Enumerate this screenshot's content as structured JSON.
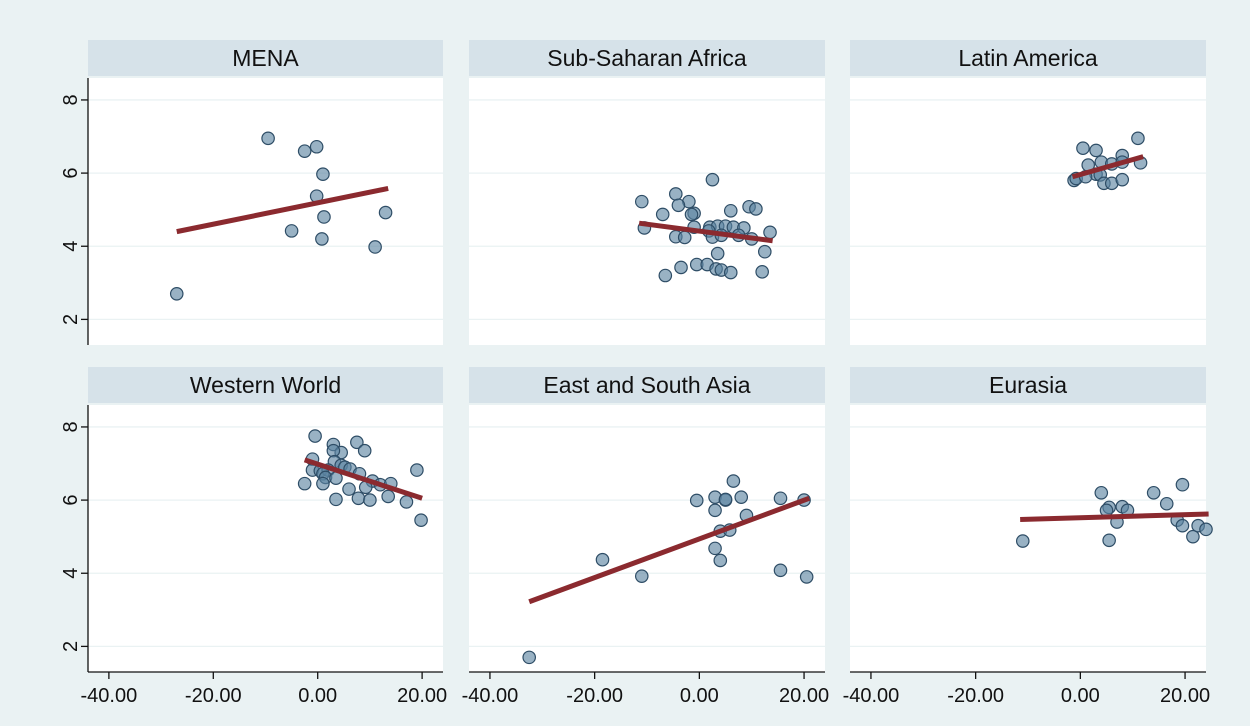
{
  "chart_data": {
    "type": "scatter",
    "layout": "facet-grid-2x3",
    "x_ticks": [
      "-40.00",
      "-20.00",
      "0.00",
      "20.00"
    ],
    "y_ticks": [
      "2",
      "4",
      "6",
      "8"
    ],
    "xlim": [
      -44,
      24
    ],
    "ylim": [
      1.3,
      8.6
    ],
    "grid": true,
    "fit_color": "#8b2a2f",
    "point_color": "#5b82a0",
    "panels": [
      {
        "title": "MENA",
        "points": [
          [
            -27,
            2.7
          ],
          [
            -9.5,
            6.95
          ],
          [
            -2.5,
            6.6
          ],
          [
            -0.2,
            6.72
          ],
          [
            1,
            5.97
          ],
          [
            -0.2,
            5.37
          ],
          [
            -5,
            4.42
          ],
          [
            1.2,
            4.8
          ],
          [
            0.8,
            4.2
          ],
          [
            13,
            4.92
          ],
          [
            11,
            3.98
          ]
        ],
        "fit": [
          [
            -27,
            4.4
          ],
          [
            13.5,
            5.58
          ]
        ]
      },
      {
        "title": "Sub-Saharan Africa",
        "points": [
          [
            -11,
            5.22
          ],
          [
            -4.5,
            5.43
          ],
          [
            -2,
            5.22
          ],
          [
            -4,
            5.12
          ],
          [
            -7,
            4.87
          ],
          [
            -1,
            4.9
          ],
          [
            2.5,
            5.82
          ],
          [
            6,
            4.97
          ],
          [
            9.5,
            5.08
          ],
          [
            10.8,
            5.02
          ],
          [
            -10.5,
            4.5
          ],
          [
            -1.5,
            4.87
          ],
          [
            2,
            4.52
          ],
          [
            3.5,
            4.55
          ],
          [
            5,
            4.55
          ],
          [
            6.5,
            4.52
          ],
          [
            8.5,
            4.5
          ],
          [
            -1,
            4.52
          ],
          [
            -4.5,
            4.26
          ],
          [
            -2.8,
            4.24
          ],
          [
            1.8,
            4.42
          ],
          [
            2.5,
            4.25
          ],
          [
            4.2,
            4.3
          ],
          [
            7.5,
            4.3
          ],
          [
            10,
            4.2
          ],
          [
            13.5,
            4.38
          ],
          [
            12.5,
            3.85
          ],
          [
            3.5,
            3.8
          ],
          [
            -0.5,
            3.5
          ],
          [
            1.5,
            3.5
          ],
          [
            3.2,
            3.38
          ],
          [
            4.2,
            3.35
          ],
          [
            -3.5,
            3.42
          ],
          [
            -6.5,
            3.2
          ],
          [
            6,
            3.28
          ],
          [
            12,
            3.3
          ]
        ],
        "fit": [
          [
            -11.5,
            4.63
          ],
          [
            14,
            4.15
          ]
        ]
      },
      {
        "title": "Latin America",
        "points": [
          [
            11,
            6.95
          ],
          [
            0.5,
            6.68
          ],
          [
            3,
            6.62
          ],
          [
            8,
            6.48
          ],
          [
            1.5,
            6.22
          ],
          [
            4,
            6.3
          ],
          [
            6,
            6.25
          ],
          [
            8,
            6.3
          ],
          [
            11.5,
            6.28
          ],
          [
            3,
            5.97
          ],
          [
            3.8,
            5.95
          ],
          [
            -1.2,
            5.8
          ],
          [
            -0.8,
            5.85
          ],
          [
            1,
            5.9
          ],
          [
            4.5,
            5.72
          ],
          [
            6,
            5.72
          ],
          [
            8,
            5.82
          ]
        ],
        "fit": [
          [
            -1.5,
            5.9
          ],
          [
            12,
            6.45
          ]
        ]
      },
      {
        "title": "Western World",
        "points": [
          [
            -0.5,
            7.75
          ],
          [
            7.5,
            7.58
          ],
          [
            3,
            7.52
          ],
          [
            4.5,
            7.3
          ],
          [
            3,
            7.35
          ],
          [
            9,
            7.35
          ],
          [
            -1,
            7.12
          ],
          [
            3.2,
            7.05
          ],
          [
            4.5,
            6.95
          ],
          [
            -1,
            6.82
          ],
          [
            0.5,
            6.8
          ],
          [
            2,
            6.82
          ],
          [
            5.2,
            6.9
          ],
          [
            6.2,
            6.85
          ],
          [
            1,
            6.72
          ],
          [
            8,
            6.72
          ],
          [
            1.5,
            6.62
          ],
          [
            3.5,
            6.6
          ],
          [
            10.5,
            6.52
          ],
          [
            -2.5,
            6.45
          ],
          [
            1,
            6.45
          ],
          [
            6,
            6.3
          ],
          [
            9.2,
            6.35
          ],
          [
            12,
            6.42
          ],
          [
            14,
            6.45
          ],
          [
            3.5,
            6.02
          ],
          [
            7.8,
            6.05
          ],
          [
            10,
            6
          ],
          [
            13.5,
            6.1
          ],
          [
            17,
            5.95
          ],
          [
            19,
            6.82
          ],
          [
            19.8,
            5.45
          ]
        ],
        "fit": [
          [
            -2.5,
            7.1
          ],
          [
            20,
            6.05
          ]
        ]
      },
      {
        "title": "East and South Asia",
        "points": [
          [
            -32.5,
            1.7
          ],
          [
            -18.5,
            4.37
          ],
          [
            -11,
            3.92
          ],
          [
            -0.5,
            5.99
          ],
          [
            3,
            6.08
          ],
          [
            5,
            6
          ],
          [
            5,
            6.02
          ],
          [
            6.5,
            6.52
          ],
          [
            8,
            6.08
          ],
          [
            15.5,
            6.05
          ],
          [
            3,
            5.72
          ],
          [
            9,
            5.58
          ],
          [
            4,
            5.15
          ],
          [
            5.8,
            5.18
          ],
          [
            3,
            4.68
          ],
          [
            4,
            4.35
          ],
          [
            15.5,
            4.08
          ],
          [
            20.5,
            3.9
          ],
          [
            20,
            6
          ]
        ],
        "fit": [
          [
            -32.5,
            3.22
          ],
          [
            21,
            6.05
          ]
        ]
      },
      {
        "title": "Eurasia",
        "points": [
          [
            -11,
            4.88
          ],
          [
            4,
            6.2
          ],
          [
            5.5,
            5.8
          ],
          [
            5,
            5.72
          ],
          [
            8,
            5.82
          ],
          [
            9,
            5.72
          ],
          [
            7,
            5.4
          ],
          [
            5.5,
            4.9
          ],
          [
            14,
            6.2
          ],
          [
            16.5,
            5.9
          ],
          [
            19.5,
            6.42
          ],
          [
            18.5,
            5.45
          ],
          [
            19.5,
            5.3
          ],
          [
            21.5,
            5
          ],
          [
            22.5,
            5.3
          ],
          [
            24,
            5.2
          ]
        ],
        "fit": [
          [
            -11.5,
            5.47
          ],
          [
            24.5,
            5.62
          ]
        ]
      }
    ]
  }
}
